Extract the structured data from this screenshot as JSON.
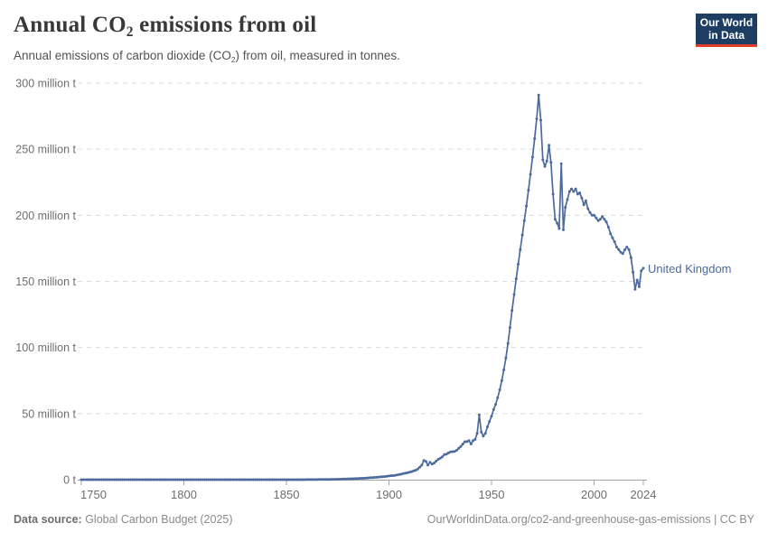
{
  "header": {
    "title_pre": "Annual CO",
    "title_sub": "2",
    "title_post": " emissions from oil",
    "subtitle_pre": "Annual emissions of carbon dioxide (CO",
    "subtitle_sub": "2",
    "subtitle_post": ") from oil, measured in tonnes.",
    "logo": {
      "line1": "Our World",
      "line2": "in Data",
      "bg_color": "#1d3d63",
      "accent_color": "#e23d28"
    }
  },
  "chart_data": {
    "type": "line",
    "title": "Annual CO2 emissions from oil",
    "xlabel": "",
    "ylabel": "",
    "unit": "million tonnes of CO2",
    "grid": true,
    "x_axis": {
      "range": [
        1750,
        2024
      ],
      "ticks": [
        {
          "year": 1750,
          "label": "1750"
        },
        {
          "year": 1800,
          "label": "1800"
        },
        {
          "year": 1850,
          "label": "1850"
        },
        {
          "year": 1900,
          "label": "1900"
        },
        {
          "year": 1950,
          "label": "1950"
        },
        {
          "year": 2000,
          "label": "2000"
        },
        {
          "year": 2024,
          "label": "2024"
        }
      ]
    },
    "y_axis": {
      "range": [
        0,
        300
      ],
      "ticks": [
        {
          "value": 0,
          "label": "0 t"
        },
        {
          "value": 50,
          "label": "50 million t"
        },
        {
          "value": 100,
          "label": "100 million t"
        },
        {
          "value": 150,
          "label": "150 million t"
        },
        {
          "value": 200,
          "label": "200 million t"
        },
        {
          "value": 250,
          "label": "250 million t"
        },
        {
          "value": 300,
          "label": "300 million t"
        }
      ]
    },
    "series": [
      {
        "name": "United Kingdom",
        "color": "#4C6A9C",
        "pad_zero_from_year": 1750,
        "start_year": 1860,
        "values": [
          0.05,
          0.06,
          0.07,
          0.08,
          0.09,
          0.1,
          0.11,
          0.12,
          0.13,
          0.15,
          0.2,
          0.22,
          0.25,
          0.28,
          0.3,
          0.33,
          0.36,
          0.4,
          0.45,
          0.5,
          0.6,
          0.65,
          0.7,
          0.75,
          0.8,
          0.9,
          1,
          1.05,
          1.1,
          1.2,
          1.4,
          1.5,
          1.6,
          1.7,
          1.8,
          2,
          2.1,
          2.2,
          2.4,
          2.6,
          2.8,
          3,
          3.1,
          3.3,
          3.6,
          3.9,
          4.2,
          4.6,
          4.9,
          5.2,
          5.6,
          6.1,
          6.6,
          7.1,
          8,
          9.5,
          11,
          14.5,
          13.8,
          11,
          13.2,
          11.8,
          12.6,
          14,
          15.4,
          16.2,
          17.3,
          18.9,
          19.3,
          20.2,
          21,
          21.2,
          21.4,
          22.2,
          23.8,
          25.1,
          26.9,
          28.7,
          28.8,
          29.5,
          27,
          29.5,
          30.5,
          35,
          49,
          36,
          33,
          35,
          40,
          44,
          48,
          53,
          57,
          62,
          68,
          75,
          83,
          92,
          103,
          115,
          128,
          140,
          152,
          163,
          174,
          185,
          196,
          207,
          219,
          231,
          244,
          258,
          273,
          291,
          272,
          242,
          237,
          241,
          253,
          240,
          216,
          197,
          194,
          190,
          239,
          189,
          206,
          212,
          218,
          220,
          218,
          220,
          216,
          217,
          213,
          208,
          211,
          205,
          202,
          200,
          200,
          198,
          196,
          197,
          199,
          197,
          195,
          191,
          186,
          183,
          180,
          176,
          174,
          172,
          171,
          174,
          176,
          174,
          168,
          157,
          144,
          151,
          146,
          158,
          160
        ]
      }
    ]
  },
  "footer": {
    "source_label": "Data source:",
    "source_value": " Global Carbon Budget (2025)",
    "link": "OurWorldinData.org/co2-and-greenhouse-gas-emissions | CC BY"
  }
}
